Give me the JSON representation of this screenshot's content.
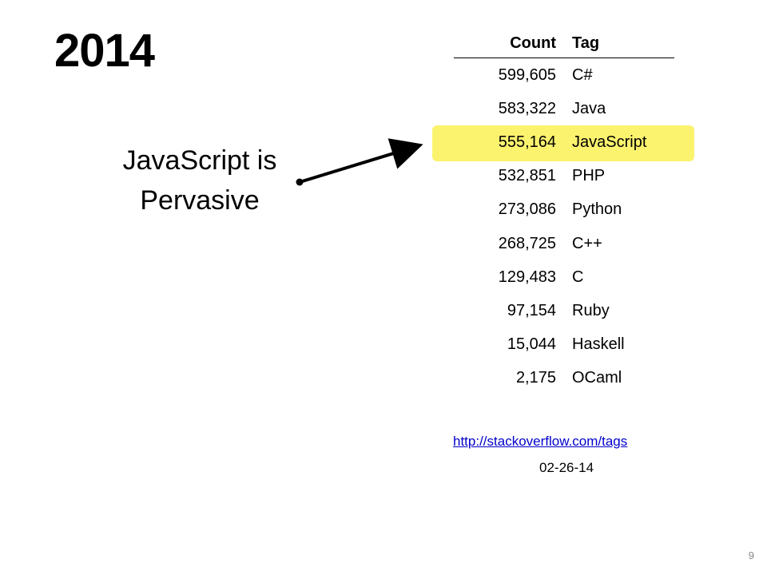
{
  "slide": {
    "title": "2014",
    "callout_line1": "JavaScript is",
    "callout_line2": "Pervasive",
    "page_number": "9"
  },
  "table": {
    "headers": {
      "count": "Count",
      "tag": "Tag"
    },
    "rows": [
      {
        "count": "599,605",
        "tag": "C#"
      },
      {
        "count": "583,322",
        "tag": "Java"
      },
      {
        "count": "555,164",
        "tag": "JavaScript",
        "highlighted": true
      },
      {
        "count": "532,851",
        "tag": "PHP"
      },
      {
        "count": "273,086",
        "tag": "Python"
      },
      {
        "count": "268,725",
        "tag": "C++"
      },
      {
        "count": "129,483",
        "tag": "C"
      },
      {
        "count": "97,154",
        "tag": "Ruby"
      },
      {
        "count": "15,044",
        "tag": "Haskell"
      },
      {
        "count": "2,175",
        "tag": "OCaml"
      }
    ]
  },
  "source": {
    "link_text": "http://stackoverflow.com/tags",
    "date": "02-26-14"
  },
  "colors": {
    "highlight": "#fbf36e",
    "link": "#0000cc"
  }
}
